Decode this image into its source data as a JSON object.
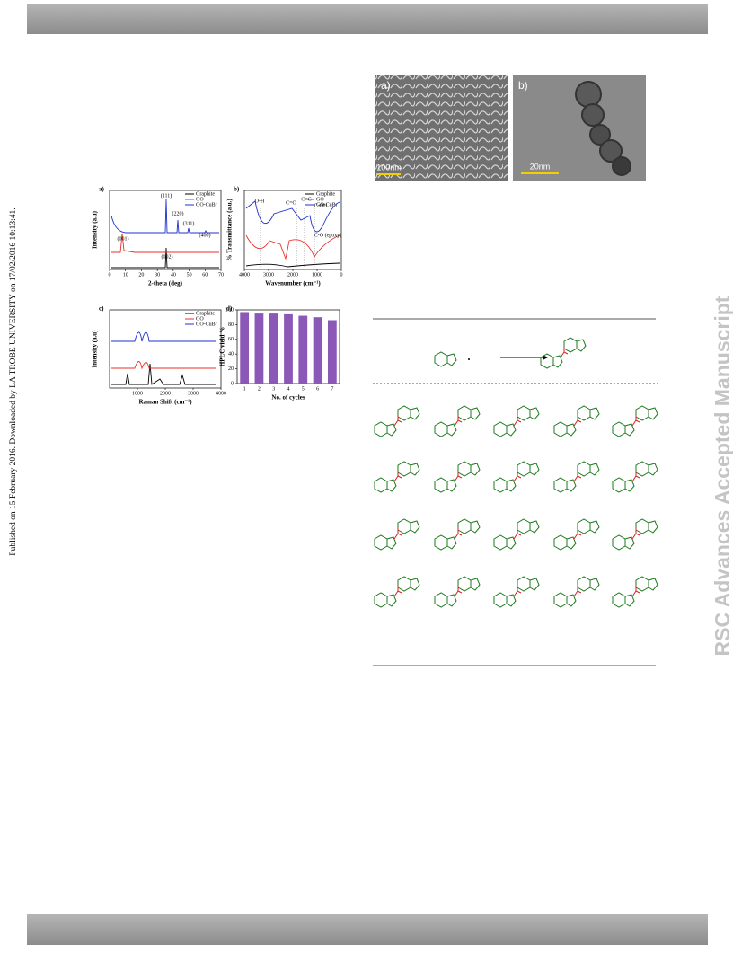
{
  "side_note": "Published on 15 February 2016. Downloaded by LA TROBE UNIVERSITY on 17/02/2016 10:13:41.",
  "watermark": "RSC Advances Accepted Manuscript",
  "micrographs": [
    {
      "label": "a)",
      "scale": "100nm"
    },
    {
      "label": "b)",
      "scale": "20nm"
    }
  ],
  "figure": {
    "legend": [
      {
        "name": "Graphite",
        "color": "#000000"
      },
      {
        "name": "GO",
        "color": "#e8302a"
      },
      {
        "name": "GO-CuBr",
        "color": "#1f2fd0"
      }
    ],
    "a": {
      "label": "a)",
      "xlabel": "2-theta (deg)",
      "ylabel": "Intensity (a.u)",
      "xlim": [
        0,
        70
      ],
      "xticks": [
        0,
        10,
        20,
        30,
        40,
        50,
        60,
        70
      ],
      "annotations": [
        "(111)",
        "(220)",
        "(311)",
        "(400)",
        "(001)",
        "(002)"
      ]
    },
    "b": {
      "label": "b)",
      "xlabel": "Wavenumber (cm⁻¹)",
      "ylabel": "% Transmittance (a.u.)",
      "xlim": [
        4000,
        0
      ],
      "xticks": [
        4000,
        3000,
        2000,
        1000,
        0
      ],
      "annotations": [
        "O-H",
        "C=O",
        "C=C",
        "C-OH",
        "C-O (epoxy)"
      ]
    },
    "c": {
      "label": "c)",
      "xlabel": "Raman Shift (cm⁻¹)",
      "ylabel": "Intensity (a.u)",
      "xlim": [
        0,
        4000
      ],
      "xticks": [
        1000,
        2000,
        3000,
        4000
      ]
    },
    "d": {
      "label": "d)",
      "xlabel": "No. of cycles",
      "ylabel": "HPLC yield %",
      "ylim": [
        0,
        100
      ],
      "yticks": [
        0,
        20,
        40,
        60,
        80,
        100
      ],
      "categories": [
        "1",
        "2",
        "3",
        "4",
        "5",
        "6",
        "7"
      ],
      "values": [
        97,
        95,
        95,
        94,
        92,
        90,
        86
      ],
      "color": "#8b58b8"
    }
  }
}
